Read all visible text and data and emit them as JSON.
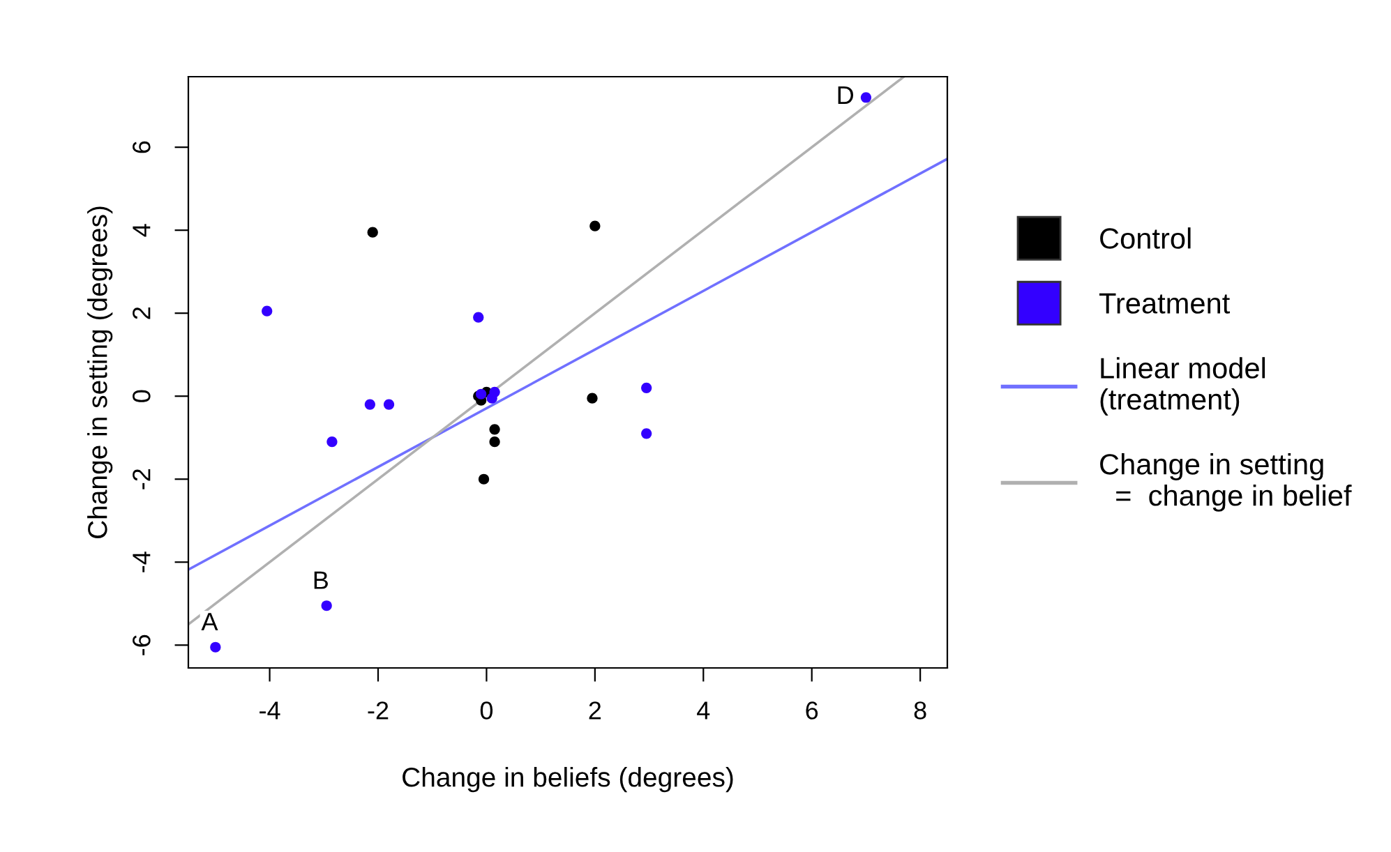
{
  "chart_data": {
    "type": "scatter",
    "xlabel": "Change in beliefs (degrees)",
    "ylabel": "Change in setting (degrees)",
    "xlim": [
      -5.5,
      8.5
    ],
    "ylim": [
      -6.55,
      7.7
    ],
    "xticks": [
      -4,
      -2,
      0,
      2,
      4,
      6,
      8
    ],
    "yticks": [
      -6,
      -4,
      -2,
      0,
      2,
      4,
      6
    ],
    "grid": false,
    "legend": "right",
    "marker": "circle",
    "series": [
      {
        "name": "Control",
        "color": "#000000",
        "x": [
          -2.1,
          2.0,
          -0.15,
          0.0,
          -0.1,
          0.15,
          0.15,
          -0.05,
          1.95
        ],
        "values": [
          3.95,
          4.1,
          0.0,
          0.1,
          -0.1,
          -0.8,
          -1.1,
          -2.0,
          -0.05
        ]
      },
      {
        "name": "Treatment",
        "color": "#3300ff",
        "x": [
          -5.0,
          -2.95,
          -2.85,
          -4.05,
          -2.15,
          -1.8,
          -0.15,
          -0.1,
          0.1,
          0.15,
          2.95,
          2.95,
          7.0
        ],
        "values": [
          -6.05,
          -5.05,
          -1.1,
          2.05,
          -0.2,
          -0.2,
          1.9,
          0.05,
          -0.05,
          0.1,
          0.2,
          -0.9,
          7.2
        ]
      },
      {
        "name": "Linear model\n(treatment)",
        "type": "line",
        "marker": "none",
        "color": "#7070ff",
        "x": [
          -5.5,
          8.5
        ],
        "values": [
          -4.18,
          5.72
        ]
      },
      {
        "name": "Change in setting\n  =  change in belief",
        "type": "line",
        "marker": "none",
        "color": "#b0b0b0",
        "x": [
          -5.5,
          7.7
        ],
        "values": [
          -5.5,
          7.7
        ]
      }
    ],
    "annotations": [
      {
        "text": "A",
        "x": -5.0,
        "y": -6.05
      },
      {
        "text": "B",
        "x": -2.95,
        "y": -5.05
      },
      {
        "text": "D",
        "x": 7.0,
        "y": 7.2
      }
    ]
  }
}
